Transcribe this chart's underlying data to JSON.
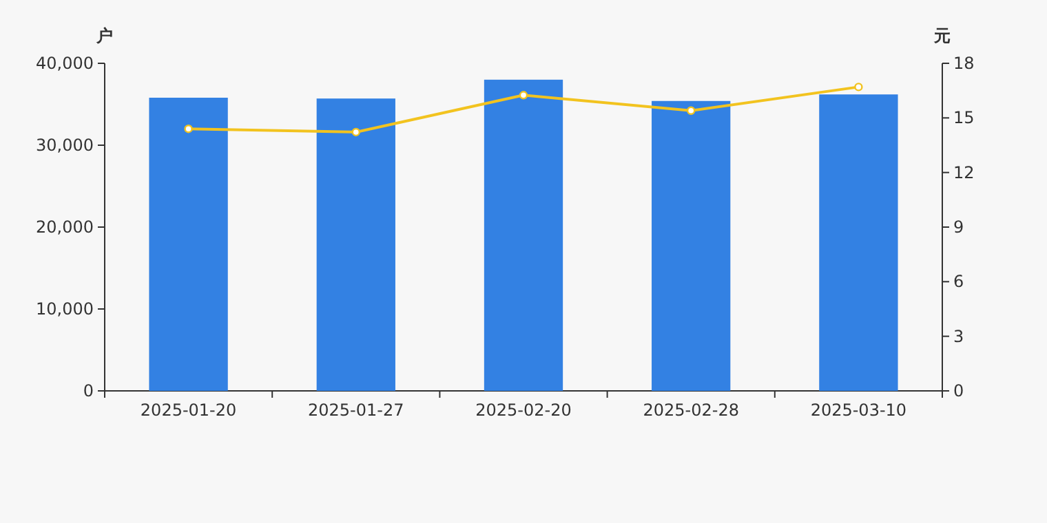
{
  "chart_data": {
    "type": "bar",
    "categories": [
      "2025-01-20",
      "2025-01-27",
      "2025-02-20",
      "2025-02-28",
      "2025-03-10"
    ],
    "ylabel": "户",
    "y2label": "元",
    "ylim": [
      0,
      40000
    ],
    "yticks": [
      {
        "value": 0,
        "label": "0"
      },
      {
        "value": 10000,
        "label": "10,000"
      },
      {
        "value": 20000,
        "label": "20,000"
      },
      {
        "value": 30000,
        "label": "30,000"
      },
      {
        "value": 40000,
        "label": "40,000"
      }
    ],
    "y2lim": [
      0,
      18
    ],
    "y2ticks": [
      0,
      3,
      6,
      9,
      12,
      15,
      18
    ],
    "marker": "circle",
    "series": [
      {
        "color": "#3381e3",
        "values": [
          35800,
          35700,
          38000,
          35400,
          36200
        ]
      },
      {
        "type": "line",
        "axis": "y2",
        "color": "#f2c31f",
        "values": [
          14.4,
          14.22,
          16.25,
          15.4,
          16.7
        ]
      }
    ]
  }
}
